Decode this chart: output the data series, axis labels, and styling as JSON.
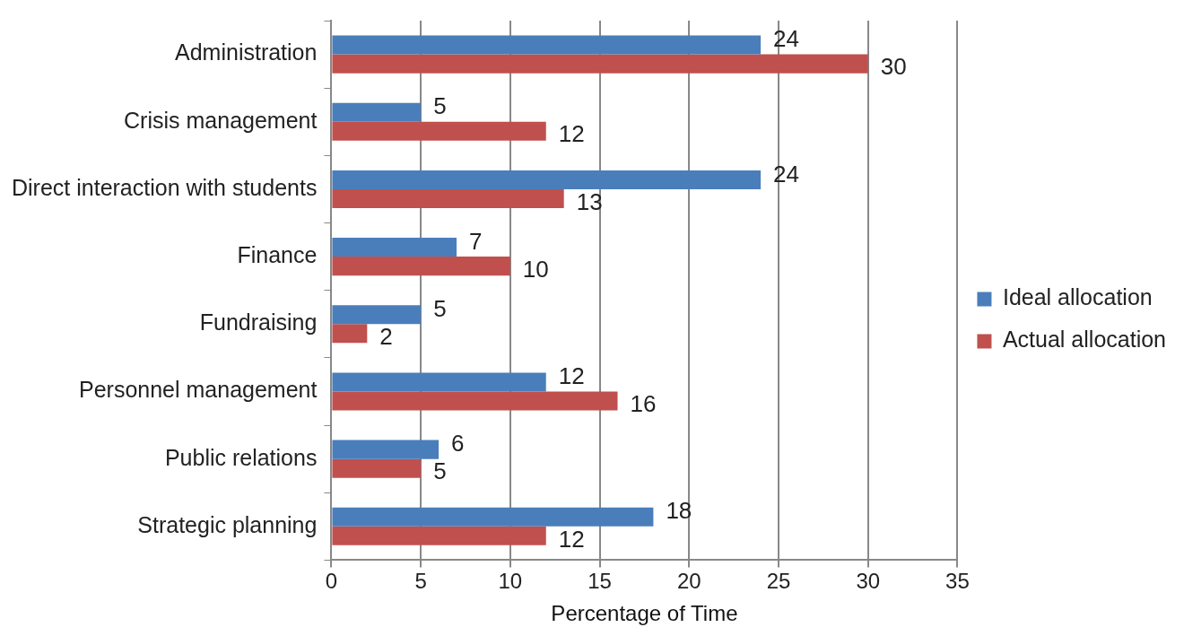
{
  "chart_data": {
    "type": "bar",
    "orientation": "horizontal",
    "xlabel": "Percentage of Time",
    "categories": [
      "Administration",
      "Crisis management",
      "Direct interaction with students",
      "Finance",
      "Fundraising",
      "Personnel management",
      "Public relations",
      "Strategic planning"
    ],
    "series": [
      {
        "name": "Ideal allocation",
        "color": "#4a7ebb",
        "values": [
          24,
          5,
          24,
          7,
          5,
          12,
          6,
          18
        ]
      },
      {
        "name": "Actual allocation",
        "color": "#c0504d",
        "values": [
          30,
          12,
          13,
          10,
          2,
          16,
          5,
          12
        ]
      }
    ],
    "xlim": [
      0,
      35
    ],
    "xticks": [
      0,
      5,
      10,
      15,
      20,
      25,
      30,
      35
    ],
    "grid": "x",
    "legend": "right",
    "data_labels": true
  }
}
